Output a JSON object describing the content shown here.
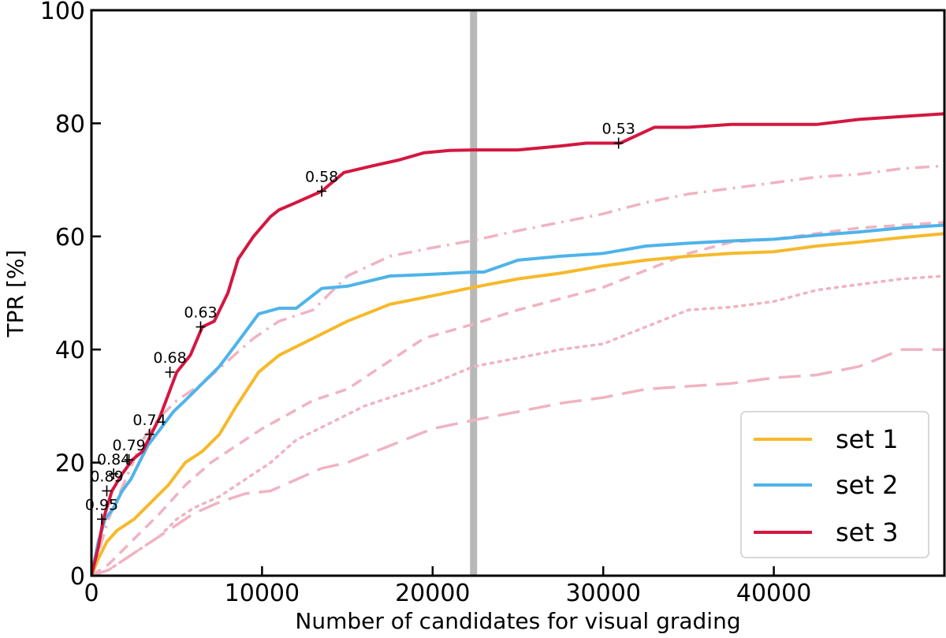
{
  "chart_data": {
    "type": "line",
    "title": "",
    "xlabel": "Number of candidates for visual grading",
    "ylabel": "TPR [%]",
    "xlim": [
      0,
      50000
    ],
    "ylim": [
      0,
      100
    ],
    "xticks": [
      0,
      10000,
      20000,
      30000,
      40000
    ],
    "xtick_labels": [
      "0",
      "10000",
      "20000",
      "30000",
      "40000"
    ],
    "yticks": [
      0,
      20,
      40,
      60,
      80,
      100
    ],
    "ytick_labels": [
      "0",
      "20",
      "40",
      "60",
      "80",
      "100"
    ],
    "grid": false,
    "legend_position": "bottom-right",
    "vertical_line": {
      "x": 22400,
      "color": "#b8b8b8"
    },
    "colors": {
      "set1": "#f6b92b",
      "set2": "#4fb3ea",
      "set3": "#d41740",
      "secondary": "#f0b3c2"
    },
    "series": [
      {
        "name": "set 1",
        "style": "solid",
        "color": "#f6b92b",
        "points": [
          [
            0,
            0
          ],
          [
            400,
            3
          ],
          [
            900,
            6
          ],
          [
            1500,
            8
          ],
          [
            2500,
            10
          ],
          [
            3500,
            13
          ],
          [
            4500,
            16
          ],
          [
            5500,
            20
          ],
          [
            6500,
            22
          ],
          [
            7500,
            25
          ],
          [
            8500,
            30
          ],
          [
            9800,
            36
          ],
          [
            11000,
            39
          ],
          [
            13000,
            42
          ],
          [
            15000,
            45
          ],
          [
            17500,
            48
          ],
          [
            20000,
            49.5
          ],
          [
            22400,
            51
          ],
          [
            25000,
            52.5
          ],
          [
            27500,
            53.5
          ],
          [
            30000,
            54.8
          ],
          [
            32500,
            55.8
          ],
          [
            35000,
            56.5
          ],
          [
            37500,
            57
          ],
          [
            40000,
            57.3
          ],
          [
            42500,
            58.3
          ],
          [
            45000,
            59
          ],
          [
            47500,
            59.8
          ],
          [
            50000,
            60.5
          ]
        ]
      },
      {
        "name": "set 2",
        "style": "solid",
        "color": "#4fb3ea",
        "points": [
          [
            0,
            0
          ],
          [
            400,
            6
          ],
          [
            800,
            10
          ],
          [
            1300,
            12
          ],
          [
            1800,
            15
          ],
          [
            2300,
            17
          ],
          [
            2800,
            20
          ],
          [
            3300,
            23
          ],
          [
            3800,
            25
          ],
          [
            4300,
            27
          ],
          [
            4800,
            29
          ],
          [
            5500,
            31
          ],
          [
            6500,
            34
          ],
          [
            7500,
            37
          ],
          [
            8500,
            41
          ],
          [
            9800,
            46.3
          ],
          [
            11000,
            47.3
          ],
          [
            12000,
            47.3
          ],
          [
            13500,
            50.8
          ],
          [
            15000,
            51.2
          ],
          [
            17500,
            53
          ],
          [
            20000,
            53.3
          ],
          [
            22400,
            53.7
          ],
          [
            23000,
            53.7
          ],
          [
            25000,
            55.8
          ],
          [
            27500,
            56.5
          ],
          [
            30000,
            57
          ],
          [
            32500,
            58.3
          ],
          [
            35000,
            58.8
          ],
          [
            37500,
            59.2
          ],
          [
            40000,
            59.5
          ],
          [
            42500,
            60.2
          ],
          [
            45000,
            60.8
          ],
          [
            47500,
            61.5
          ],
          [
            50000,
            62
          ]
        ]
      },
      {
        "name": "set 3",
        "style": "solid",
        "color": "#d41740",
        "points": [
          [
            0,
            0
          ],
          [
            400,
            5
          ],
          [
            700,
            10
          ],
          [
            1200,
            15
          ],
          [
            1800,
            18
          ],
          [
            2400,
            20.5
          ],
          [
            3000,
            22
          ],
          [
            3500,
            25
          ],
          [
            4000,
            28
          ],
          [
            4500,
            32
          ],
          [
            5000,
            36
          ],
          [
            5800,
            39
          ],
          [
            6500,
            44
          ],
          [
            7200,
            45
          ],
          [
            8000,
            50
          ],
          [
            8600,
            56
          ],
          [
            9500,
            60
          ],
          [
            10500,
            63.5
          ],
          [
            11000,
            64.7
          ],
          [
            12000,
            66
          ],
          [
            13500,
            68
          ],
          [
            14800,
            71.3
          ],
          [
            16500,
            72.5
          ],
          [
            18000,
            73.5
          ],
          [
            19500,
            74.8
          ],
          [
            21000,
            75.2
          ],
          [
            22400,
            75.3
          ],
          [
            25000,
            75.3
          ],
          [
            27500,
            76
          ],
          [
            29000,
            76.5
          ],
          [
            31000,
            76.5
          ],
          [
            33000,
            79.3
          ],
          [
            35000,
            79.3
          ],
          [
            37500,
            79.8
          ],
          [
            40000,
            79.8
          ],
          [
            42500,
            79.8
          ],
          [
            45000,
            80.7
          ],
          [
            47500,
            81.2
          ],
          [
            50000,
            81.7
          ]
        ]
      },
      {
        "name": "",
        "style": "dashdot",
        "color": "#f0b3c2",
        "points": [
          [
            0,
            0
          ],
          [
            1000,
            10
          ],
          [
            2000,
            17
          ],
          [
            3000,
            24
          ],
          [
            4000,
            28
          ],
          [
            5000,
            31
          ],
          [
            6500,
            34
          ],
          [
            8000,
            38
          ],
          [
            9500,
            42
          ],
          [
            11000,
            45
          ],
          [
            13000,
            47
          ],
          [
            15000,
            53
          ],
          [
            17500,
            56.5
          ],
          [
            20000,
            58
          ],
          [
            22400,
            59.3
          ],
          [
            25000,
            61
          ],
          [
            27500,
            62.5
          ],
          [
            30000,
            64
          ],
          [
            32500,
            66
          ],
          [
            35000,
            67.5
          ],
          [
            37500,
            68.5
          ],
          [
            40000,
            69.5
          ],
          [
            42500,
            70.5
          ],
          [
            45000,
            71
          ],
          [
            47500,
            72
          ],
          [
            50000,
            72.5
          ]
        ]
      },
      {
        "name": "",
        "style": "dashed",
        "color": "#f0b3c2",
        "points": [
          [
            0,
            0
          ],
          [
            1000,
            2
          ],
          [
            2000,
            5
          ],
          [
            3000,
            8
          ],
          [
            4000,
            11
          ],
          [
            5500,
            16
          ],
          [
            7000,
            20
          ],
          [
            8500,
            23
          ],
          [
            10000,
            26
          ],
          [
            11500,
            28.5
          ],
          [
            13000,
            31
          ],
          [
            15000,
            33
          ],
          [
            17500,
            38
          ],
          [
            19500,
            42
          ],
          [
            22400,
            44.5
          ],
          [
            25000,
            47
          ],
          [
            27500,
            49
          ],
          [
            30000,
            51
          ],
          [
            32500,
            54
          ],
          [
            35000,
            57
          ],
          [
            37500,
            59
          ],
          [
            40000,
            59.5
          ],
          [
            42500,
            60.5
          ],
          [
            45000,
            61.5
          ],
          [
            47500,
            62
          ],
          [
            50000,
            62.5
          ]
        ]
      },
      {
        "name": "",
        "style": "dotted",
        "color": "#f0b3c2",
        "points": [
          [
            0,
            0
          ],
          [
            1000,
            1
          ],
          [
            2000,
            3
          ],
          [
            3000,
            5
          ],
          [
            4000,
            7
          ],
          [
            5000,
            10
          ],
          [
            6000,
            12
          ],
          [
            7500,
            14
          ],
          [
            9000,
            17
          ],
          [
            10500,
            20
          ],
          [
            12000,
            24
          ],
          [
            14000,
            27
          ],
          [
            16000,
            30
          ],
          [
            18000,
            32
          ],
          [
            20000,
            34
          ],
          [
            22400,
            37
          ],
          [
            25000,
            38.5
          ],
          [
            27500,
            40
          ],
          [
            30000,
            41
          ],
          [
            32500,
            44
          ],
          [
            35000,
            47
          ],
          [
            37500,
            47.5
          ],
          [
            40000,
            48.5
          ],
          [
            42500,
            50.5
          ],
          [
            45000,
            51.5
          ],
          [
            47500,
            52.5
          ],
          [
            50000,
            53
          ]
        ]
      },
      {
        "name": "",
        "style": "longdash",
        "color": "#f0b3c2",
        "points": [
          [
            0,
            0
          ],
          [
            1000,
            1
          ],
          [
            2000,
            3
          ],
          [
            3000,
            5
          ],
          [
            4000,
            7
          ],
          [
            5000,
            9
          ],
          [
            6000,
            11
          ],
          [
            7500,
            13
          ],
          [
            9000,
            14.5
          ],
          [
            10500,
            15
          ],
          [
            12000,
            17
          ],
          [
            13500,
            19
          ],
          [
            15000,
            20
          ],
          [
            17500,
            23
          ],
          [
            20000,
            26
          ],
          [
            22400,
            27.5
          ],
          [
            25000,
            29
          ],
          [
            27500,
            30.5
          ],
          [
            30000,
            31.5
          ],
          [
            32500,
            33
          ],
          [
            35000,
            33.5
          ],
          [
            37500,
            34
          ],
          [
            40000,
            35
          ],
          [
            42500,
            35.5
          ],
          [
            45000,
            37
          ],
          [
            47500,
            40
          ],
          [
            50000,
            40
          ]
        ]
      }
    ],
    "thresholds": [
      {
        "x": 600,
        "y": 10,
        "label": "0.95"
      },
      {
        "x": 900,
        "y": 15,
        "label": "0.89"
      },
      {
        "x": 1300,
        "y": 18,
        "label": "0.84"
      },
      {
        "x": 2200,
        "y": 20.5,
        "label": "0.79"
      },
      {
        "x": 3400,
        "y": 25,
        "label": "0.74"
      },
      {
        "x": 4600,
        "y": 36,
        "label": "0.68"
      },
      {
        "x": 6400,
        "y": 44,
        "label": "0.63"
      },
      {
        "x": 13500,
        "y": 68,
        "label": "0.58"
      },
      {
        "x": 30900,
        "y": 76.5,
        "label": "0.53"
      }
    ],
    "legend": [
      {
        "label": "set 1",
        "color": "#f6b92b"
      },
      {
        "label": "set 2",
        "color": "#4fb3ea"
      },
      {
        "label": "set 3",
        "color": "#d41740"
      }
    ]
  }
}
